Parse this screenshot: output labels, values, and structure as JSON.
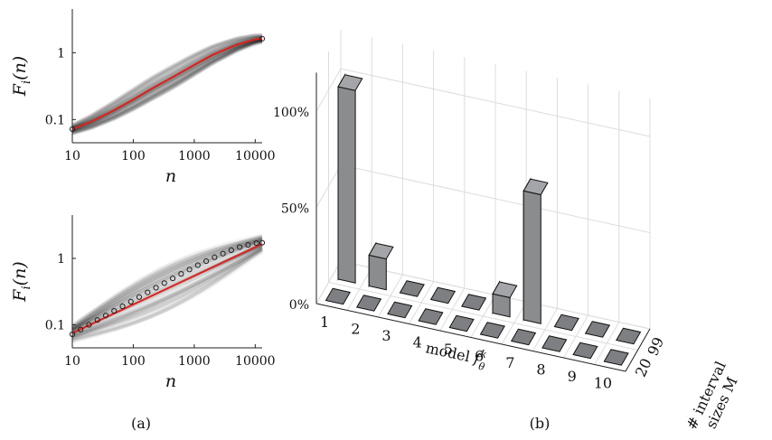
{
  "panel_a_caption": "(a)",
  "panel_b_caption": "(b)",
  "chart_data": [
    {
      "type": "line",
      "panel": "a-top",
      "ylabel": "F_i(n)",
      "xlabel": "n",
      "x_scale": "log",
      "y_scale": "log",
      "xlim": [
        10,
        13000
      ],
      "ylim": [
        0.045,
        4.5
      ],
      "xtick_labels": [
        "10",
        "100",
        "1000",
        "10000"
      ],
      "ytick_labels": [
        "0.1",
        "1"
      ],
      "xticks": [
        10,
        100,
        1000,
        10000
      ],
      "yticks": [
        0.1,
        1
      ],
      "series": [
        {
          "color": "#e0201b",
          "x": [
            10,
            20,
            50,
            100,
            200,
            500,
            1000,
            2000,
            5000,
            10000,
            13000
          ],
          "y": [
            0.072,
            0.092,
            0.14,
            0.2,
            0.29,
            0.46,
            0.66,
            0.93,
            1.32,
            1.58,
            1.62
          ]
        },
        {
          "marker": "circle",
          "x": [
            10,
            13000
          ],
          "y": [
            0.072,
            1.62
          ]
        }
      ]
    },
    {
      "type": "line",
      "panel": "a-bottom",
      "ylabel": "F_i(n)",
      "xlabel": "n",
      "x_scale": "log",
      "y_scale": "log",
      "xlim": [
        10,
        13000
      ],
      "ylim": [
        0.045,
        4.5
      ],
      "xtick_labels": [
        "10",
        "100",
        "1000",
        "10000"
      ],
      "ytick_labels": [
        "0.1",
        "1"
      ],
      "xticks": [
        10,
        100,
        1000,
        10000
      ],
      "yticks": [
        0.1,
        1
      ],
      "series": [
        {
          "color": "#e0201b",
          "x": [
            10,
            13000
          ],
          "y": [
            0.075,
            1.65
          ]
        },
        {
          "marker": "circle",
          "x": [
            10,
            13.7,
            18.8,
            25.8,
            35.4,
            48.5,
            66.6,
            91.3,
            125,
            172,
            236,
            323,
            444,
            609,
            835,
            1145,
            1571,
            2155,
            2956,
            4055,
            5563,
            7632,
            10470,
            13000
          ],
          "y": [
            0.072,
            0.085,
            0.1,
            0.118,
            0.138,
            0.162,
            0.19,
            0.223,
            0.262,
            0.308,
            0.362,
            0.425,
            0.5,
            0.585,
            0.68,
            0.79,
            0.91,
            1.04,
            1.18,
            1.33,
            1.48,
            1.6,
            1.7,
            1.72
          ]
        }
      ]
    },
    {
      "type": "bar",
      "panel": "b",
      "style": "3d",
      "xlabel": "model f_θ^k",
      "ylabel": "# interval sizes M",
      "categories": [
        "1",
        "2",
        "3",
        "4",
        "5",
        "6",
        "7",
        "8",
        "9",
        "10"
      ],
      "depth_categories": [
        "20",
        "99"
      ],
      "ztick_labels": [
        "0%",
        "50%",
        "100%"
      ],
      "zlim": [
        0,
        1.0
      ],
      "series": [
        {
          "name": "20",
          "values": [
            0,
            0,
            0,
            0,
            0,
            0,
            0,
            0,
            0,
            0
          ]
        },
        {
          "name": "99",
          "values": [
            1.0,
            0.16,
            0,
            0,
            0,
            0.1,
            0.67,
            0,
            0,
            0
          ]
        }
      ],
      "bar_color": "#8a8c8f"
    }
  ]
}
